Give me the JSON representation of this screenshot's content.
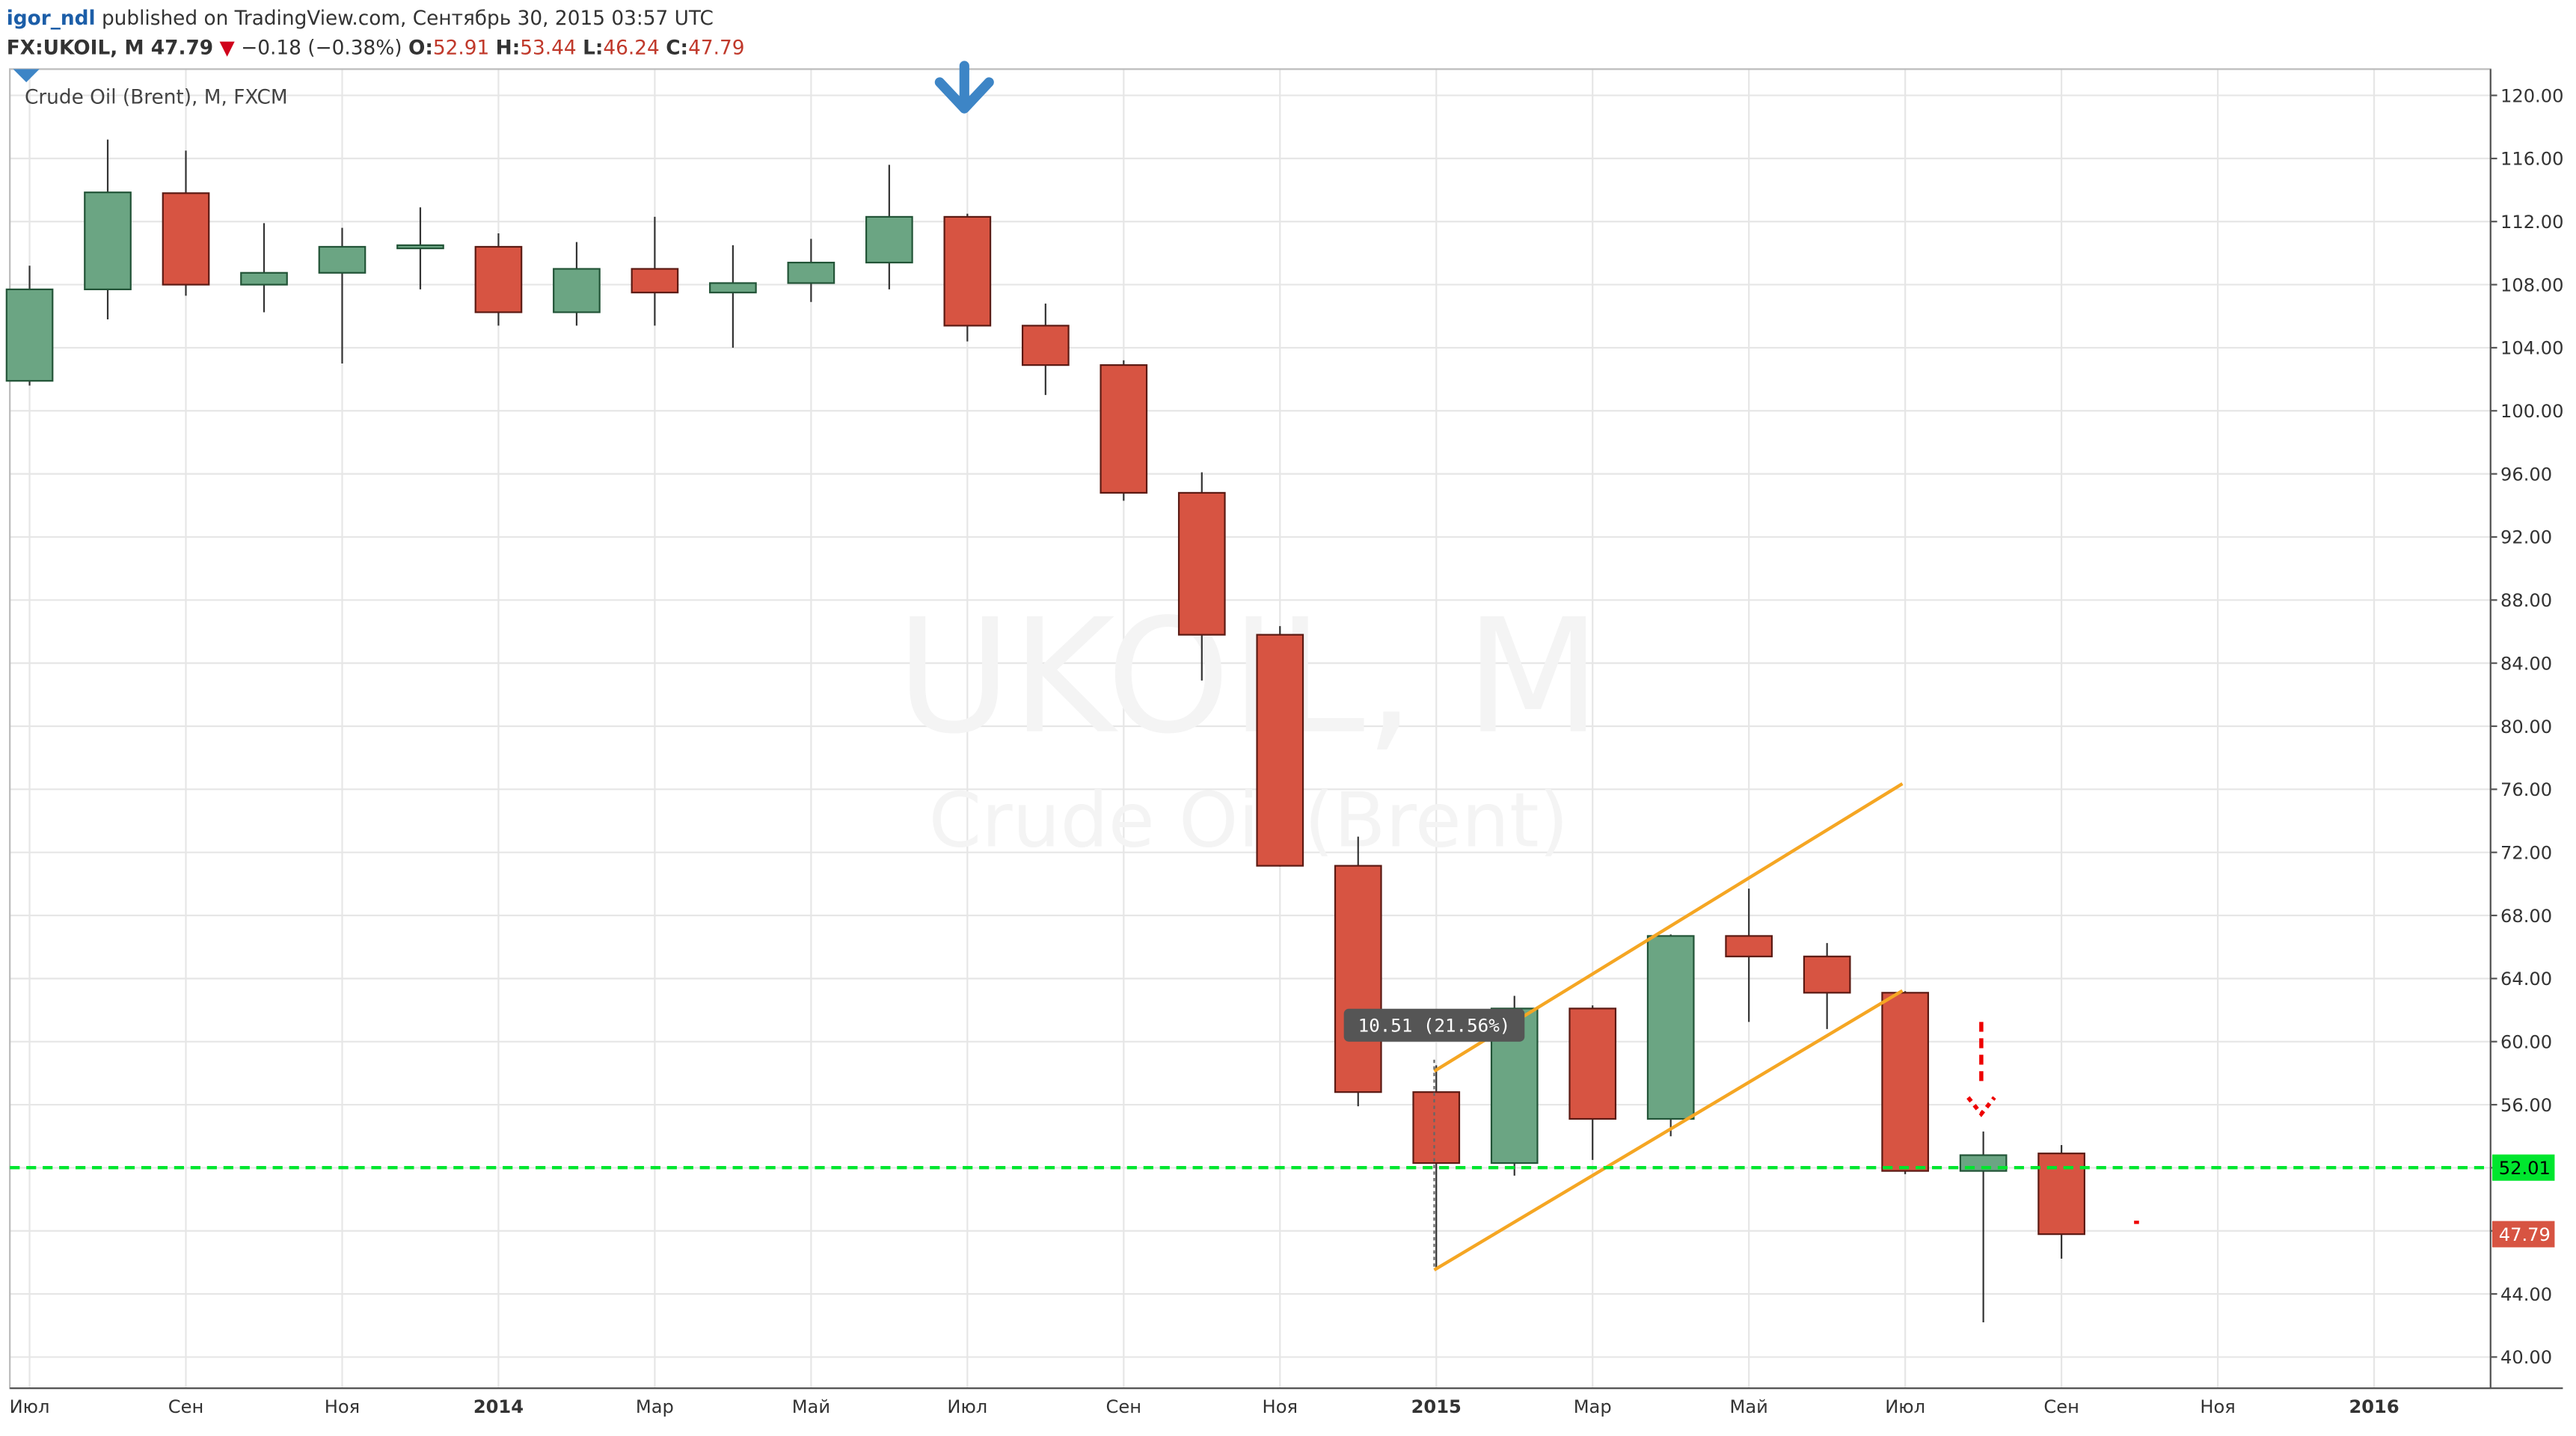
{
  "header": {
    "author": "igor_ndl",
    "published": "published on TradingView.com, Сентябрь 30, 2015 03:57 UTC",
    "symbol": "FX:UKOIL, M 47.79",
    "arrow": "▼",
    "change": "−0.18 (−0.38%)",
    "ohlc": [
      {
        "key": "O:",
        "value": "52.91"
      },
      {
        "key": "H:",
        "value": "53.44"
      },
      {
        "key": "L:",
        "value": "46.24"
      },
      {
        "key": "C:",
        "value": "47.79"
      }
    ]
  },
  "chart_data": {
    "type": "candlestick",
    "legend": "Crude Oil (Brent), M, FXCM",
    "watermark": "UKOIL, M",
    "watermark_subtitle": "Crude Oil (Brent)",
    "categories": [
      "Июл",
      null,
      "Сен",
      null,
      "Ноя",
      null,
      "2014",
      null,
      "Мар",
      null,
      "Май",
      null,
      "Июл",
      null,
      "Сен",
      null,
      "Ноя",
      null,
      "2015",
      null,
      "Мар",
      null,
      "Май",
      null,
      "Июл",
      null,
      "Сен",
      null,
      "Ноя",
      null,
      "2016"
    ],
    "open": [
      101.9,
      107.7,
      113.8,
      108.0,
      108.75,
      110.3,
      110.4,
      106.25,
      109.0,
      107.5,
      108.1,
      109.4,
      112.3,
      105.4,
      102.9,
      94.8,
      85.8,
      71.15,
      56.8,
      52.3,
      62.1,
      55.1,
      66.7,
      65.4,
      63.1,
      51.8,
      52.91,
      null,
      null,
      null,
      null
    ],
    "high": [
      109.2,
      117.2,
      116.5,
      111.9,
      111.6,
      112.9,
      111.25,
      110.7,
      112.3,
      110.5,
      110.9,
      115.6,
      112.5,
      106.8,
      103.2,
      96.1,
      86.35,
      73.0,
      58.5,
      62.9,
      62.3,
      66.8,
      69.7,
      66.25,
      63.2,
      54.3,
      53.44,
      null,
      null,
      null,
      null
    ],
    "low": [
      101.6,
      105.8,
      107.3,
      106.25,
      103.0,
      107.7,
      105.4,
      105.4,
      105.4,
      104.0,
      106.9,
      107.7,
      104.4,
      101.0,
      94.3,
      82.9,
      71.1,
      55.9,
      45.6,
      51.5,
      52.5,
      54.0,
      61.25,
      60.8,
      51.6,
      42.2,
      46.24,
      null,
      null,
      null,
      null
    ],
    "close": [
      107.7,
      113.85,
      108.0,
      108.75,
      110.4,
      110.5,
      106.25,
      109.0,
      107.5,
      108.1,
      109.4,
      112.3,
      105.4,
      102.9,
      94.8,
      85.8,
      71.15,
      56.8,
      52.3,
      62.1,
      55.1,
      66.7,
      65.4,
      63.1,
      51.8,
      52.8,
      47.79,
      null,
      null,
      null,
      null
    ],
    "up_color": "#6ba583",
    "down_color": "#d75442",
    "level": {
      "value": 52.01,
      "label": "52.01",
      "color": "#00e62e"
    },
    "last_price": {
      "value": 47.79,
      "label": "47.79"
    },
    "measure_label": "10.51 (21.56%)",
    "ylim": [
      40,
      120
    ],
    "yticks": [
      {
        "value": 40,
        "label": "40.00"
      },
      {
        "value": 44,
        "label": "44.00"
      },
      {
        "value": 48,
        "label": "48.00"
      },
      {
        "value": 52,
        "label": "52.00"
      },
      {
        "value": 56,
        "label": "56.00"
      },
      {
        "value": 60,
        "label": "60.00"
      },
      {
        "value": 64,
        "label": "64.00"
      },
      {
        "value": 68,
        "label": "68.00"
      },
      {
        "value": 72,
        "label": "72.00"
      },
      {
        "value": 76,
        "label": "76.00"
      },
      {
        "value": 80,
        "label": "80.00"
      },
      {
        "value": 84,
        "label": "84.00"
      },
      {
        "value": 88,
        "label": "88.00"
      },
      {
        "value": 92,
        "label": "92.00"
      },
      {
        "value": 96,
        "label": "96.00"
      },
      {
        "value": 100,
        "label": "100.00"
      },
      {
        "value": 104,
        "label": "104.00"
      },
      {
        "value": 108,
        "label": "108.00"
      },
      {
        "value": 112,
        "label": "112.00"
      },
      {
        "value": 116,
        "label": "116.00"
      },
      {
        "value": 120,
        "label": "120.00"
      }
    ],
    "grid": true
  }
}
